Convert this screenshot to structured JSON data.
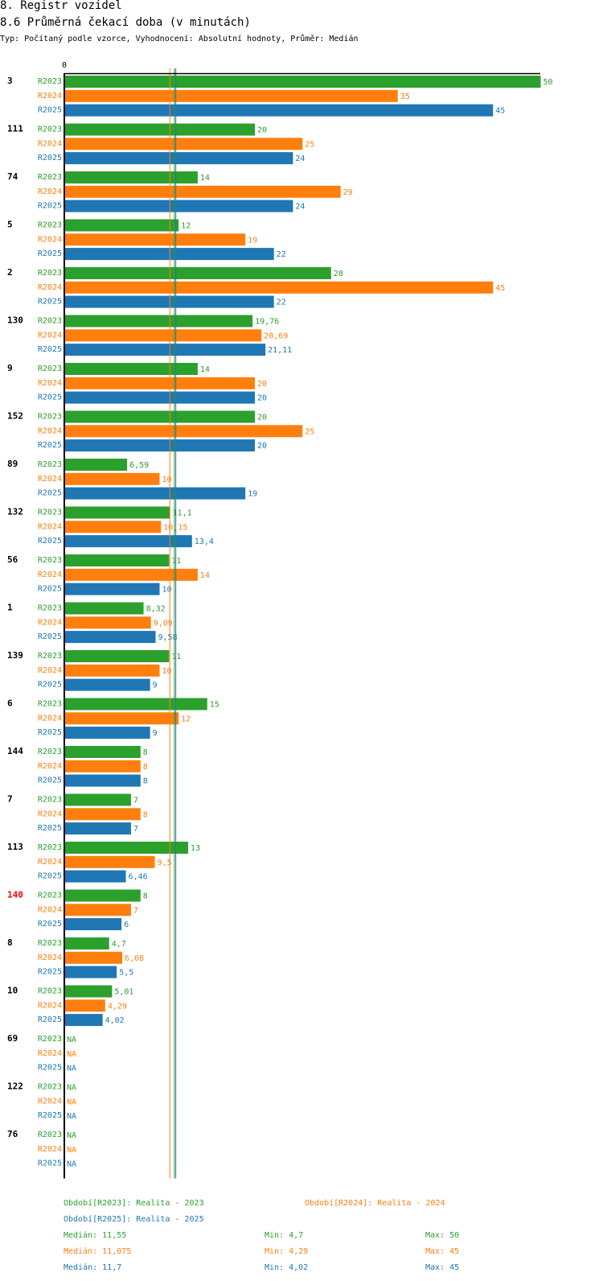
{
  "header": {
    "title": "8. Registr vozidel",
    "subtitle": "8.6 Průměrná čekací doba (v minutách)",
    "info": "Typ: Počítaný podle vzorce, Vyhodnocení: Absolutní hodnoty, Průměr: Medián"
  },
  "chart_data": {
    "type": "bar",
    "orientation": "horizontal",
    "title": "8.6 Průměrná čekací doba (v minutách)",
    "axis_zero_label": "0",
    "xlim": [
      0,
      50
    ],
    "categories": [
      "3",
      "111",
      "74",
      "5",
      "2",
      "130",
      "9",
      "152",
      "89",
      "132",
      "56",
      "1",
      "139",
      "6",
      "144",
      "7",
      "113",
      "140",
      "8",
      "10",
      "69",
      "122",
      "76"
    ],
    "highlighted_category": "140",
    "colors": {
      "R2023": "#2ca02c",
      "R2024": "#ff7f0e",
      "R2025": "#1f77b4",
      "highlight": "#ff0000"
    },
    "series": [
      {
        "name": "R2023",
        "values": [
          50,
          20,
          14,
          12,
          28,
          19.76,
          14,
          20,
          6.59,
          11.1,
          11,
          8.32,
          11,
          15,
          8,
          7,
          13,
          8,
          4.7,
          5.01,
          null,
          null,
          null
        ],
        "labels": [
          "50",
          "20",
          "14",
          "12",
          "28",
          "19,76",
          "14",
          "20",
          "6,59",
          "11,1",
          "11",
          "8,32",
          "11",
          "15",
          "8",
          "7",
          "13",
          "8",
          "4,7",
          "5,01",
          "NA",
          "NA",
          "NA"
        ]
      },
      {
        "name": "R2024",
        "values": [
          35,
          25,
          29,
          19,
          45,
          20.69,
          20,
          25,
          10,
          10.15,
          14,
          9.09,
          10,
          12,
          8,
          8,
          9.5,
          7,
          6.08,
          4.29,
          null,
          null,
          null
        ],
        "labels": [
          "35",
          "25",
          "29",
          "19",
          "45",
          "20,69",
          "20",
          "25",
          "10",
          "10,15",
          "14",
          "9,09",
          "10",
          "12",
          "8",
          "8",
          "9,5",
          "7",
          "6,08",
          "4,29",
          "NA",
          "NA",
          "NA"
        ]
      },
      {
        "name": "R2025",
        "values": [
          45,
          24,
          24,
          22,
          22,
          21.11,
          20,
          20,
          19,
          13.4,
          10,
          9.58,
          9,
          9,
          8,
          7,
          6.46,
          6,
          5.5,
          4.02,
          null,
          null,
          null
        ],
        "labels": [
          "45",
          "24",
          "24",
          "22",
          "22",
          "21,11",
          "20",
          "20",
          "19",
          "13,4",
          "10",
          "9,58",
          "9",
          "9",
          "8",
          "7",
          "6,46",
          "6",
          "5,5",
          "4,02",
          "NA",
          "NA",
          "NA"
        ]
      }
    ],
    "reference_lines": [
      {
        "series": "R2023",
        "type": "median",
        "value": 11.55
      },
      {
        "series": "R2024",
        "type": "median",
        "value": 11.075
      },
      {
        "series": "R2025",
        "type": "median",
        "value": 11.7
      }
    ]
  },
  "legend": {
    "periods": [
      {
        "series": "R2023",
        "text": "Období[R2023]: Realita - 2023"
      },
      {
        "series": "R2024",
        "text": "Období[R2024]: Realita - 2024"
      },
      {
        "series": "R2025",
        "text": "Období[R2025]: Realita - 2025"
      }
    ],
    "stats": [
      {
        "series": "R2023",
        "median": "Medián: 11,55",
        "min": "Min: 4,7",
        "max": "Max: 50"
      },
      {
        "series": "R2024",
        "median": "Medián: 11,075",
        "min": "Min: 4,29",
        "max": "Max: 45"
      },
      {
        "series": "R2025",
        "median": "Medián: 11,7",
        "min": "Min: 4,02",
        "max": "Max: 45"
      }
    ]
  }
}
